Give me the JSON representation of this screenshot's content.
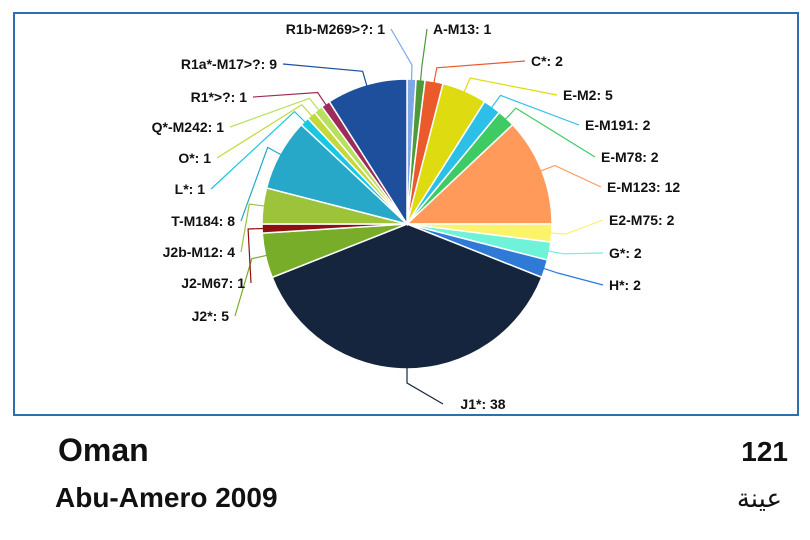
{
  "chart_data": {
    "type": "pie",
    "total": 121,
    "slices": [
      {
        "label": "R1b-M269>?: 1",
        "value": 1,
        "color": "#7fa7e6"
      },
      {
        "label": "A-M13: 1",
        "value": 1,
        "color": "#4c9a3a"
      },
      {
        "label": "C*: 2",
        "value": 2,
        "color": "#ea5a2a"
      },
      {
        "label": "E-M2: 5",
        "value": 5,
        "color": "#dedc10"
      },
      {
        "label": "E-M191: 2",
        "value": 2,
        "color": "#2cc0e8"
      },
      {
        "label": "E-M78: 2",
        "value": 2,
        "color": "#3fcb63"
      },
      {
        "label": "E-M123: 12",
        "value": 12,
        "color": "#ff9a5a"
      },
      {
        "label": "E2-M75: 2",
        "value": 2,
        "color": "#fbf36a"
      },
      {
        "label": "G*: 2",
        "value": 2,
        "color": "#6ef2d8"
      },
      {
        "label": "H*: 2",
        "value": 2,
        "color": "#2e7ad6"
      },
      {
        "label": "J1*: 38",
        "value": 38,
        "color": "#14253d"
      },
      {
        "label": "J2*: 5",
        "value": 5,
        "color": "#77ad28"
      },
      {
        "label": "J2-M67: 1",
        "value": 1,
        "color": "#8d1010"
      },
      {
        "label": "J2b-M12: 4",
        "value": 4,
        "color": "#9cc33a"
      },
      {
        "label": "T-M184: 8",
        "value": 8,
        "color": "#27a8c8"
      },
      {
        "label": "L*: 1",
        "value": 1,
        "color": "#18c7e2"
      },
      {
        "label": "O*: 1",
        "value": 1,
        "color": "#c4d83a"
      },
      {
        "label": "Q*-M242: 1",
        "value": 1,
        "color": "#b7e05e"
      },
      {
        "label": "R1*>?: 1",
        "value": 1,
        "color": "#9e2c5a"
      },
      {
        "label": "R1a*-M17>?: 9",
        "value": 9,
        "color": "#1d4f9c"
      }
    ]
  },
  "captions": {
    "country": "Oman",
    "study": "Abu-Amero 2009",
    "sample_count": "121",
    "sample_word": "عينة"
  }
}
